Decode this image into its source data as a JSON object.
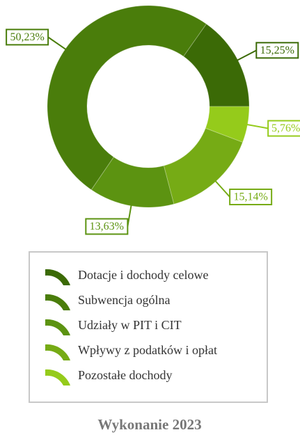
{
  "chart_data": {
    "type": "donut",
    "title": "Wykonanie 2023",
    "categories": [
      "Dotacje i dochody celowe",
      "Subwencja ogólna",
      "Udziały w PIT i CIT",
      "Wpływy z podatków i opłat",
      "Pozostałe dochody"
    ],
    "values": [
      15.25,
      50.23,
      13.63,
      15.14,
      5.76
    ],
    "value_labels": [
      "15,25%",
      "50,23%",
      "13,63%",
      "15,14%",
      "5,76%"
    ],
    "colors": [
      "#3b6a06",
      "#4a7d0b",
      "#5c9311",
      "#76ab15",
      "#95cb1b"
    ],
    "legend": "bottom"
  }
}
